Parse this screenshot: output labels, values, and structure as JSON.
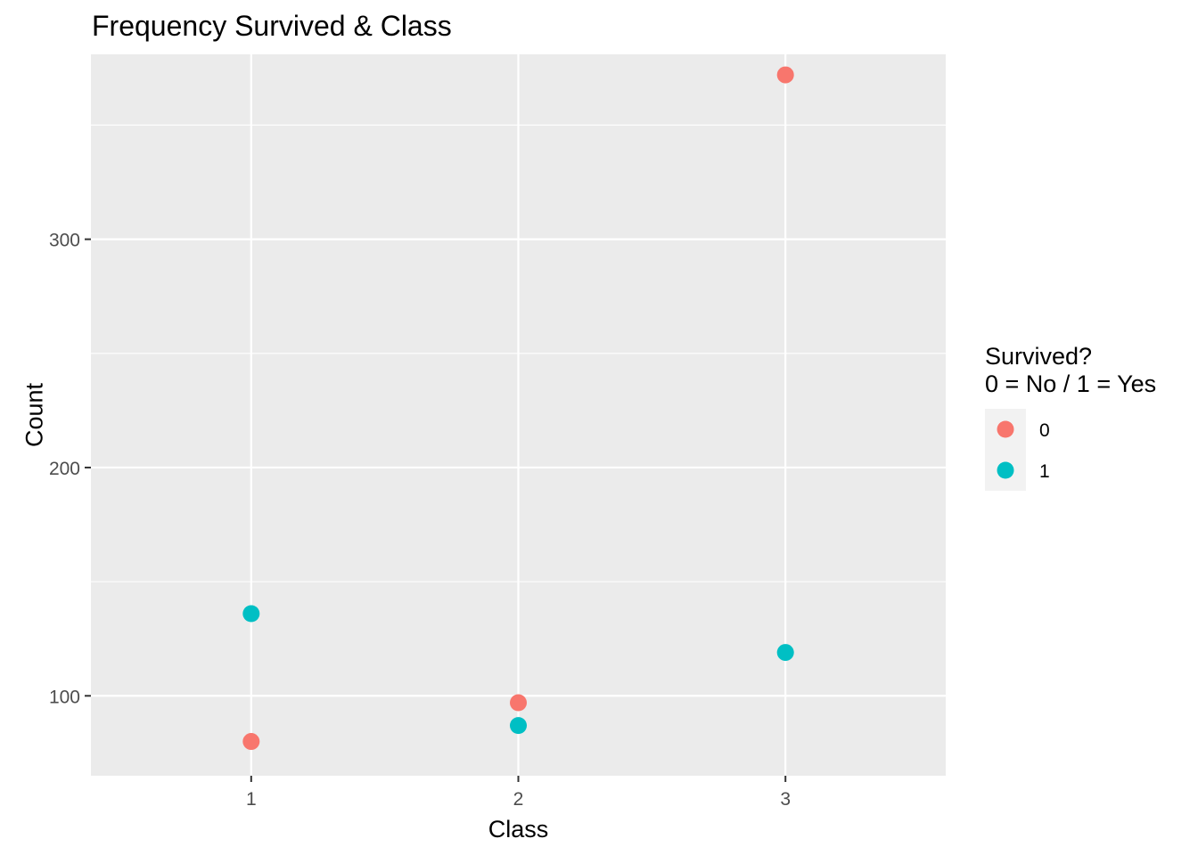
{
  "chart_data": {
    "type": "scatter",
    "title": "Frequency Survived & Class",
    "xlabel": "Class",
    "ylabel": "Count",
    "x_ticks": [
      "1",
      "2",
      "3"
    ],
    "y_ticks": [
      "100",
      "200",
      "300"
    ],
    "xlim": [
      0.4,
      3.6
    ],
    "ylim": [
      65,
      381
    ],
    "grid": true,
    "legend": {
      "position": "right",
      "title_line1": "Survived?",
      "title_line2": "0 = No / 1 = Yes",
      "entries": [
        "0",
        "1"
      ]
    },
    "series": [
      {
        "name": "0",
        "color": "#F8766D",
        "x": [
          1,
          2,
          3
        ],
        "y": [
          80,
          97,
          372
        ]
      },
      {
        "name": "1",
        "color": "#00BFC4",
        "x": [
          1,
          2,
          3
        ],
        "y": [
          136,
          87,
          119
        ]
      }
    ]
  }
}
